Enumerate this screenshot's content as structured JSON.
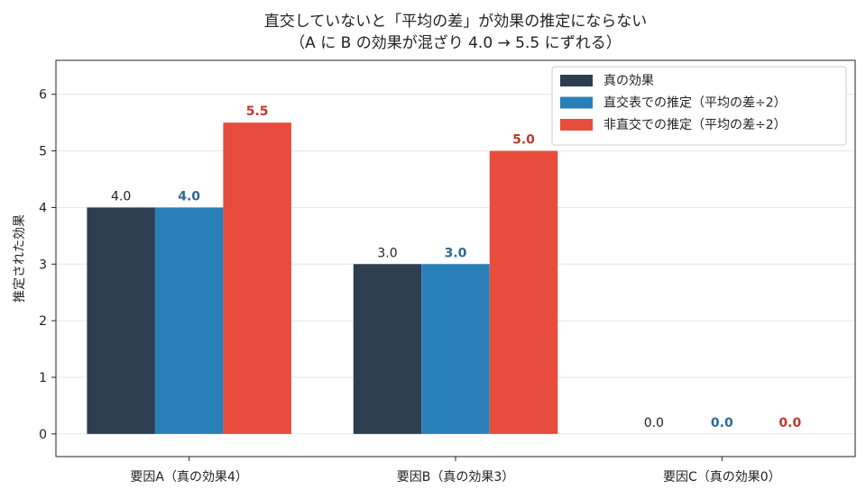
{
  "chart_data": {
    "type": "bar",
    "title": "直交していないと「平均の差」が効果の推定にならない",
    "subtitle": "（A に B の効果が混ざり 4.0 → 5.5 にずれる）",
    "xlabel": "",
    "ylabel": "推定された効果",
    "ylim": [
      -0.4,
      6.6
    ],
    "yticks": [
      0,
      1,
      2,
      3,
      4,
      5,
      6
    ],
    "grid": "horizontal",
    "legend_position": "top-right",
    "categories": [
      "要因A（真の効果4）",
      "要因B（真の効果3）",
      "要因C（真の効果0）"
    ],
    "series": [
      {
        "name": "真の効果",
        "values": [
          4.0,
          3.0,
          0.0
        ],
        "labels": [
          "4.0",
          "3.0",
          "0.0"
        ],
        "color": "#2c3e50",
        "label_color": "#222222",
        "label_bold": false
      },
      {
        "name": "直交表での推定（平均の差÷2）",
        "values": [
          4.0,
          3.0,
          0.0
        ],
        "labels": [
          "4.0",
          "3.0",
          "0.0"
        ],
        "color": "#2980b9",
        "label_color": "#2a6a96",
        "label_bold": true
      },
      {
        "name": "非直交での推定（平均の差÷2）",
        "values": [
          5.5,
          5.0,
          0.0
        ],
        "labels": [
          "5.5",
          "5.0",
          "0.0"
        ],
        "color": "#e74c3c",
        "label_color": "#c0392b",
        "label_bold": true
      }
    ]
  }
}
